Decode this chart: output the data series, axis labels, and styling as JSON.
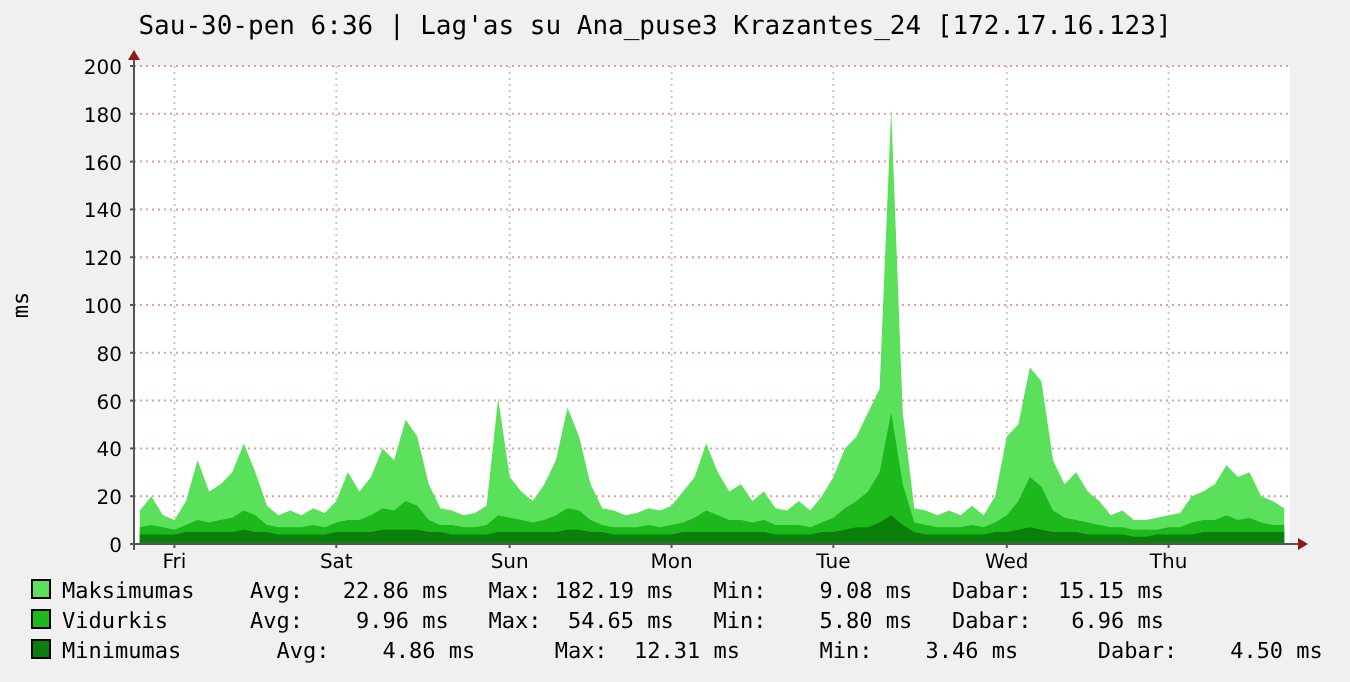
{
  "chart_data": {
    "type": "area",
    "title": "Sau-30-pen 6:36 | Lag'as su Ana_puse3 Krazantes_24 [172.17.16.123]",
    "ylabel": "ms",
    "categories": [
      null,
      null,
      null,
      "Fri",
      null,
      null,
      null,
      null,
      null,
      null,
      null,
      null,
      null,
      null,
      null,
      null,
      null,
      "Sat",
      null,
      null,
      null,
      null,
      null,
      null,
      null,
      null,
      null,
      null,
      null,
      null,
      null,
      null,
      "Sun",
      null,
      null,
      null,
      null,
      null,
      null,
      null,
      null,
      null,
      null,
      null,
      null,
      null,
      "Mon",
      null,
      null,
      null,
      null,
      null,
      null,
      null,
      null,
      null,
      null,
      null,
      null,
      null,
      "Tue",
      null,
      null,
      null,
      null,
      null,
      null,
      null,
      null,
      null,
      null,
      null,
      null,
      null,
      null,
      "Wed",
      null,
      null,
      null,
      null,
      null,
      null,
      null,
      null,
      null,
      null,
      null,
      null,
      null,
      "Thu",
      null,
      null,
      null,
      null,
      null,
      null,
      null,
      null,
      null,
      null
    ],
    "series": [
      {
        "name": "Maksimumas",
        "color": "#5ae05a",
        "values": [
          14,
          20,
          12,
          10,
          18,
          35,
          22,
          25,
          30,
          42,
          30,
          16,
          12,
          14,
          12,
          15,
          13,
          18,
          30,
          22,
          28,
          40,
          35,
          52,
          45,
          25,
          15,
          14,
          12,
          13,
          16,
          61,
          28,
          22,
          18,
          25,
          35,
          57,
          45,
          25,
          15,
          14,
          12,
          13,
          15,
          14,
          16,
          22,
          28,
          42,
          30,
          22,
          25,
          18,
          22,
          15,
          14,
          18,
          14,
          20,
          28,
          40,
          45,
          55,
          65,
          182,
          55,
          15,
          14,
          12,
          14,
          12,
          16,
          12,
          20,
          45,
          50,
          74,
          68,
          35,
          25,
          30,
          22,
          18,
          12,
          14,
          10,
          10,
          11,
          12,
          13,
          20,
          22,
          25,
          33,
          28,
          30,
          20,
          18,
          15
        ]
      },
      {
        "name": "Vidurkis",
        "color": "#1cb81c",
        "values": [
          7,
          8,
          7,
          6,
          8,
          10,
          9,
          10,
          11,
          14,
          12,
          8,
          7,
          7,
          7,
          8,
          7,
          9,
          10,
          10,
          12,
          15,
          14,
          18,
          16,
          10,
          8,
          8,
          7,
          7,
          8,
          12,
          11,
          10,
          9,
          10,
          12,
          15,
          14,
          10,
          8,
          7,
          7,
          7,
          8,
          7,
          8,
          9,
          11,
          14,
          12,
          10,
          10,
          9,
          10,
          8,
          8,
          8,
          7,
          9,
          11,
          15,
          18,
          22,
          30,
          55,
          25,
          9,
          8,
          7,
          7,
          7,
          8,
          7,
          9,
          12,
          18,
          28,
          24,
          14,
          11,
          10,
          9,
          8,
          7,
          7,
          6,
          6,
          6,
          7,
          7,
          9,
          10,
          10,
          12,
          10,
          11,
          9,
          8,
          8
        ]
      },
      {
        "name": "Minimumas",
        "color": "#0a800a",
        "values": [
          4,
          4,
          4,
          4,
          5,
          5,
          5,
          5,
          5,
          6,
          5,
          5,
          4,
          4,
          4,
          4,
          4,
          5,
          5,
          5,
          5,
          6,
          6,
          6,
          6,
          5,
          5,
          4,
          4,
          4,
          4,
          5,
          5,
          5,
          5,
          5,
          5,
          6,
          6,
          5,
          5,
          4,
          4,
          4,
          4,
          4,
          4,
          5,
          5,
          5,
          5,
          5,
          5,
          5,
          5,
          4,
          4,
          4,
          4,
          5,
          5,
          6,
          7,
          7,
          9,
          12,
          8,
          5,
          4,
          4,
          4,
          4,
          4,
          4,
          5,
          5,
          6,
          7,
          6,
          5,
          5,
          5,
          4,
          4,
          4,
          4,
          3,
          3,
          4,
          4,
          4,
          4,
          5,
          5,
          5,
          5,
          5,
          5,
          5,
          5
        ]
      }
    ],
    "annotations": [
      "Avg:   22.86 ms   Max: 182.19 ms   Min:    9.08 ms   Dabar:  15.15 ms",
      "Avg:    9.96 ms   Max:  54.65 ms   Min:    5.80 ms   Dabar:   6.96 ms",
      "  Avg:    4.86 ms      Max:  12.31 ms      Min:    3.46 ms      Dabar:    4.50 ms"
    ],
    "ylim": [
      0,
      200
    ],
    "yticks": [
      0,
      20,
      40,
      60,
      80,
      100,
      120,
      140,
      160,
      180,
      200
    ],
    "grid": true,
    "legend": "bottom"
  }
}
